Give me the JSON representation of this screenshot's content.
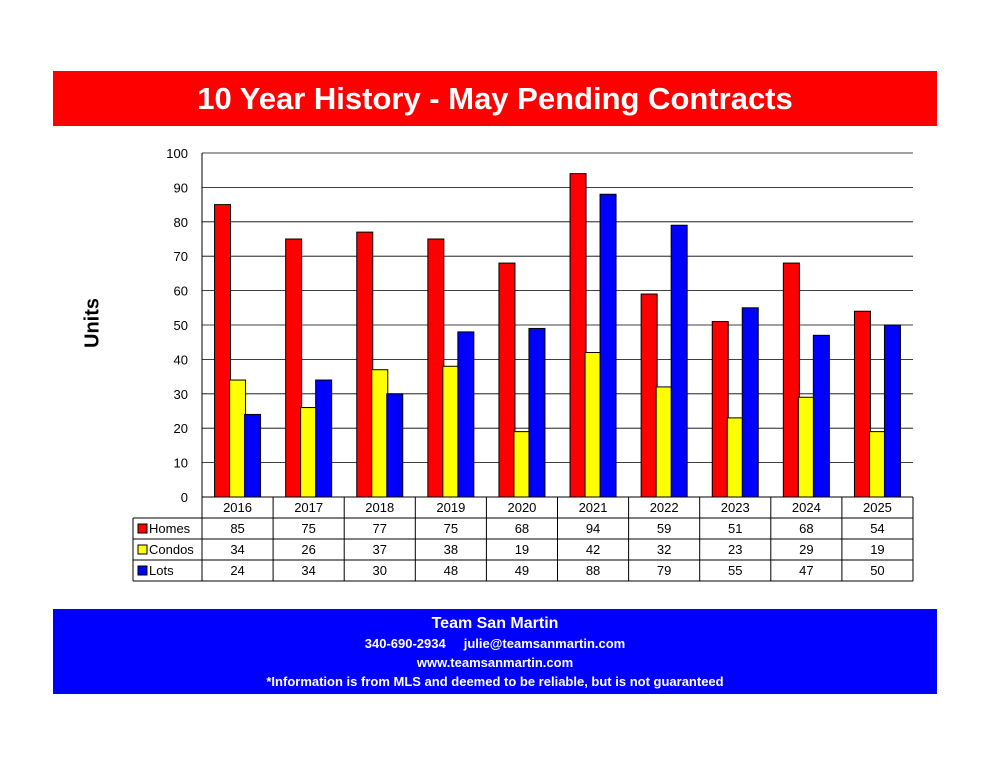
{
  "title": "10 Year History - May Pending Contracts",
  "chart_data": {
    "type": "bar",
    "ylabel": "Units",
    "ylim": [
      0,
      100
    ],
    "yticks": [
      0,
      10,
      20,
      30,
      40,
      50,
      60,
      70,
      80,
      90,
      100
    ],
    "categories": [
      "2016",
      "2017",
      "2018",
      "2019",
      "2020",
      "2021",
      "2022",
      "2023",
      "2024",
      "2025"
    ],
    "series": [
      {
        "name": "Homes",
        "color": "#ff0000",
        "values": [
          85,
          75,
          77,
          75,
          68,
          94,
          59,
          51,
          68,
          54
        ]
      },
      {
        "name": "Condos",
        "color": "#ffff00",
        "values": [
          34,
          26,
          37,
          38,
          19,
          42,
          32,
          23,
          29,
          19
        ]
      },
      {
        "name": "Lots",
        "color": "#0000ff",
        "values": [
          24,
          34,
          30,
          48,
          49,
          88,
          79,
          55,
          47,
          50
        ]
      }
    ],
    "grid": true,
    "legend": "data-table"
  },
  "footer": {
    "name": "Team San Martin",
    "phone": "340-690-2934",
    "email": "julie@teamsanmartin.com",
    "website": "www.teamsanmartin.com",
    "disclaimer": "*Information is from MLS and deemed to be reliable, but is not guaranteed"
  }
}
